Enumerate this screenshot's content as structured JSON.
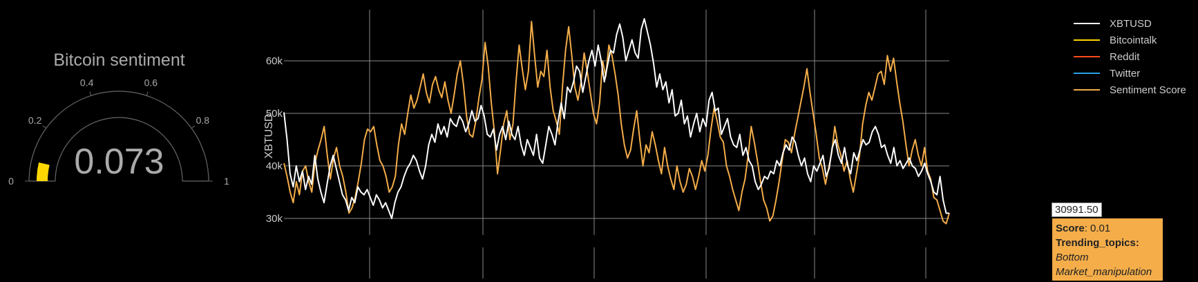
{
  "gauge": {
    "title": "Bitcoin sentiment",
    "value": 0.073,
    "value_text": "0.073",
    "range": [
      0,
      1
    ],
    "ticks": [
      "0",
      "0.2",
      "0.4",
      "0.6",
      "0.8",
      "1"
    ],
    "bar_color": "#ffd700"
  },
  "legend": [
    {
      "name": "XBTUSD",
      "color": "#ffffff"
    },
    {
      "name": "Bitcointalk",
      "color": "#ffd400"
    },
    {
      "name": "Reddit",
      "color": "#ff4b1a"
    },
    {
      "name": "Twitter",
      "color": "#2aa0e8"
    },
    {
      "name": "Sentiment Score",
      "color": "#f4ad49"
    }
  ],
  "tooltip": {
    "x_value": "30991.50",
    "score_label": "Score",
    "score_value": ": 0.01",
    "topics_label": "Trending_topics:",
    "topics": [
      "Bottom",
      "Market_manipulation"
    ]
  },
  "chart_data": {
    "type": "line",
    "ylabel": "XBTUSD",
    "ylim": [
      26000,
      70000
    ],
    "yticks": [
      30000,
      40000,
      50000,
      60000
    ],
    "ytick_labels": [
      "30k",
      "40k",
      "50k",
      "60k"
    ],
    "grid": true,
    "legend_position": "top-right",
    "series": [
      {
        "name": "XBTUSD",
        "color": "#ffffff",
        "values": [
          50200,
          45000,
          38500,
          36000,
          40000,
          37000,
          39000,
          35500,
          38000,
          36500,
          42000,
          37500,
          35000,
          33000,
          36500,
          40000,
          42000,
          39500,
          37000,
          34500,
          33500,
          31500,
          34000,
          33000,
          36000,
          35000,
          34500,
          35500,
          34000,
          32500,
          34500,
          33500,
          32000,
          33000,
          31500,
          30000,
          33000,
          35000,
          36000,
          38000,
          39500,
          40500,
          42000,
          41000,
          39000,
          37500,
          40000,
          44000,
          46000,
          44500,
          48000,
          46000,
          47500,
          45500,
          49000,
          48000,
          47500,
          49500,
          48500,
          46500,
          48000,
          50500,
          48500,
          49000,
          51500,
          49500,
          46000,
          45500,
          47000,
          43000,
          46000,
          47500,
          45000,
          48500,
          46000,
          45000,
          47500,
          44000,
          42000,
          45000,
          43500,
          42000,
          46000,
          41500,
          40500,
          44000,
          47500,
          46000,
          44000,
          48500,
          52000,
          49000,
          55000,
          54000,
          56000,
          59000,
          58000,
          54000,
          57000,
          60000,
          62000,
          59000,
          63000,
          60000,
          56000,
          59000,
          62000,
          61500,
          65000,
          67000,
          64500,
          60000,
          62000,
          64000,
          61500,
          60500,
          66000,
          68000,
          65500,
          63000,
          59500,
          55000,
          57500,
          54500,
          56000,
          52000,
          54500,
          49500,
          50000,
          52500,
          48000,
          49500,
          45500,
          48000,
          50000,
          46500,
          49000,
          47500,
          52500,
          54000,
          50500,
          51000,
          46000,
          47500,
          49000,
          45500,
          44000,
          43500,
          46000,
          42000,
          43500,
          41000,
          40000,
          37000,
          35500,
          36500,
          38000,
          37500,
          39000,
          38500,
          41000,
          40000,
          42500,
          44000,
          43000,
          45500,
          44500,
          42000,
          40000,
          41500,
          38500,
          37000,
          40000,
          39000,
          40500,
          42000,
          38000,
          39500,
          43500,
          45000,
          42000,
          40500,
          43500,
          40000,
          38500,
          42500,
          41000,
          43000,
          45000,
          44000,
          44500,
          46500,
          47500,
          46000,
          43500,
          44000,
          42000,
          40500,
          43500,
          40000,
          41000,
          39500,
          40500,
          41500,
          40000,
          39500,
          38000,
          39000,
          40500,
          38500,
          37000,
          35000,
          34500,
          38000,
          33500,
          31000,
          30991.5
        ]
      },
      {
        "name": "Sentiment Score",
        "color": "#f4ad49",
        "values": [
          40500,
          38000,
          35000,
          33000,
          37000,
          34500,
          39000,
          40000,
          37000,
          35000,
          40500,
          43000,
          45000,
          47500,
          42000,
          37500,
          41500,
          43500,
          40000,
          38000,
          35000,
          31000,
          32000,
          34000,
          37000,
          40500,
          45000,
          47000,
          46500,
          47500,
          44000,
          41000,
          40000,
          38000,
          35000,
          36000,
          38000,
          44000,
          48000,
          46000,
          50000,
          53500,
          51000,
          52500,
          55000,
          57500,
          54000,
          52000,
          55500,
          57000,
          54500,
          53000,
          56000,
          52500,
          50000,
          53500,
          57500,
          60000,
          55500,
          49500,
          46000,
          45500,
          48500,
          53000,
          56500,
          63500,
          59000,
          52000,
          46500,
          38500,
          43000,
          48000,
          50500,
          45000,
          48000,
          56000,
          63000,
          58500,
          54500,
          58000,
          67500,
          61000,
          55000,
          58000,
          57000,
          62000,
          55000,
          50500,
          48500,
          46000,
          55000,
          62000,
          66500,
          61000,
          55000,
          52500,
          56000,
          61500,
          58000,
          54000,
          50000,
          48000,
          52000,
          60000,
          57000,
          63000,
          61000,
          57500,
          53500,
          48000,
          44000,
          41500,
          43000,
          47000,
          50500,
          45000,
          40000,
          44000,
          42500,
          46500,
          44000,
          41000,
          38500,
          43500,
          40000,
          37500,
          35500,
          40000,
          37000,
          35000,
          36500,
          39500,
          38000,
          35500,
          38000,
          41000,
          39000,
          42000,
          47000,
          51000,
          48500,
          45500,
          44500,
          40000,
          38000,
          35500,
          33500,
          31500,
          35000,
          37500,
          42000,
          47500,
          44500,
          41000,
          37000,
          33500,
          32000,
          29500,
          30500,
          33500,
          37000,
          41000,
          45000,
          44500,
          42500,
          46000,
          49000,
          52000,
          55000,
          58500,
          54000,
          50000,
          46000,
          41500,
          39500,
          36500,
          39500,
          42500,
          47500,
          44000,
          42000,
          39000,
          41000,
          37500,
          35000,
          38500,
          42000,
          48000,
          51500,
          54000,
          52500,
          55000,
          57500,
          58000,
          55500,
          61000,
          58000,
          60500,
          56000,
          52000,
          48500,
          44000,
          40000,
          43000,
          45000,
          42000,
          40000,
          43500,
          39000,
          37500,
          34000,
          33500,
          31500,
          29500,
          29000,
          31000
        ]
      }
    ]
  }
}
